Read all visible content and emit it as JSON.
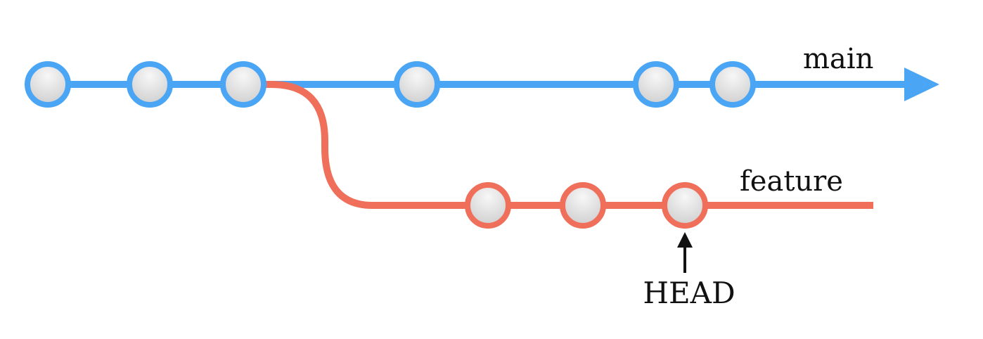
{
  "branches": {
    "main": {
      "label": "main",
      "color": "#4aa6f5",
      "commit_count": 6
    },
    "feature": {
      "label": "feature",
      "color": "#ef6f5a",
      "commit_count": 3
    }
  },
  "pointer": {
    "label": "HEAD",
    "color": "#111111",
    "target": "feature commit 3"
  },
  "commit_fill": [
    "#f5f5f5",
    "#d2d2d2"
  ]
}
